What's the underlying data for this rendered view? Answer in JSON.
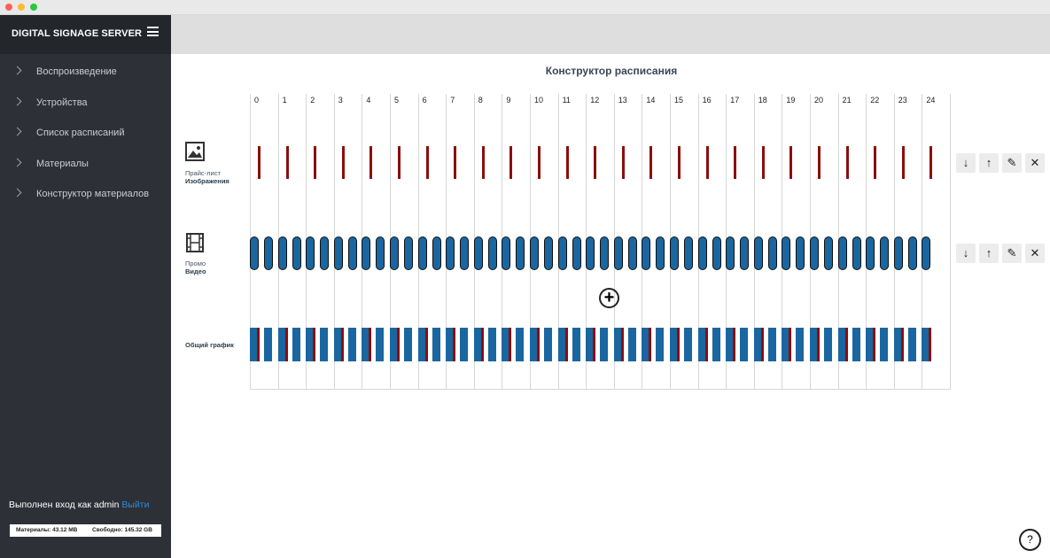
{
  "window": {
    "controls": [
      {
        "name": "close",
        "color": "#ff5f57"
      },
      {
        "name": "minimize",
        "color": "#febc2e"
      },
      {
        "name": "maximize",
        "color": "#28c840"
      }
    ]
  },
  "sidebar": {
    "brand": "DIGITAL SIGNAGE SERVER",
    "menu_icon": "hamburger-menu-icon",
    "items": [
      {
        "label": "Воспроизведение"
      },
      {
        "label": "Устройства"
      },
      {
        "label": "Список расписаний"
      },
      {
        "label": "Материалы"
      },
      {
        "label": "Конструктор материалов"
      }
    ],
    "login_text": "Выполнен вход как admin",
    "logout_label": "Выйти",
    "storage": {
      "materials": "Материалы: 43.12 MB",
      "free": "Свободно: 145.32 GB"
    }
  },
  "main": {
    "title": "Конструктор расписания",
    "hours": [
      "0",
      "1",
      "2",
      "3",
      "4",
      "5",
      "6",
      "7",
      "8",
      "9",
      "10",
      "11",
      "12",
      "13",
      "14",
      "15",
      "16",
      "17",
      "18",
      "19",
      "20",
      "21",
      "22",
      "23",
      "24"
    ],
    "rows": [
      {
        "icon": "image-icon",
        "name": "Прайс-лист",
        "type": "Изображения",
        "mark_style": "line",
        "color": "#8b0e0e",
        "actions": [
          "arrow-down-icon",
          "arrow-up-icon",
          "edit-icon",
          "close-icon"
        ]
      },
      {
        "icon": "film-icon",
        "name": "Промо",
        "type": "Видео",
        "mark_style": "pill",
        "color": "#1a66a0",
        "actions": [
          "arrow-down-icon",
          "arrow-up-icon",
          "edit-icon",
          "close-icon"
        ]
      }
    ],
    "total_label": "Общий график",
    "colors": {
      "image": "#8b0e0e",
      "video": "#1a66a0"
    },
    "add_icon": "add-circle-icon",
    "help_icon": "help-icon",
    "help_label": "?"
  }
}
